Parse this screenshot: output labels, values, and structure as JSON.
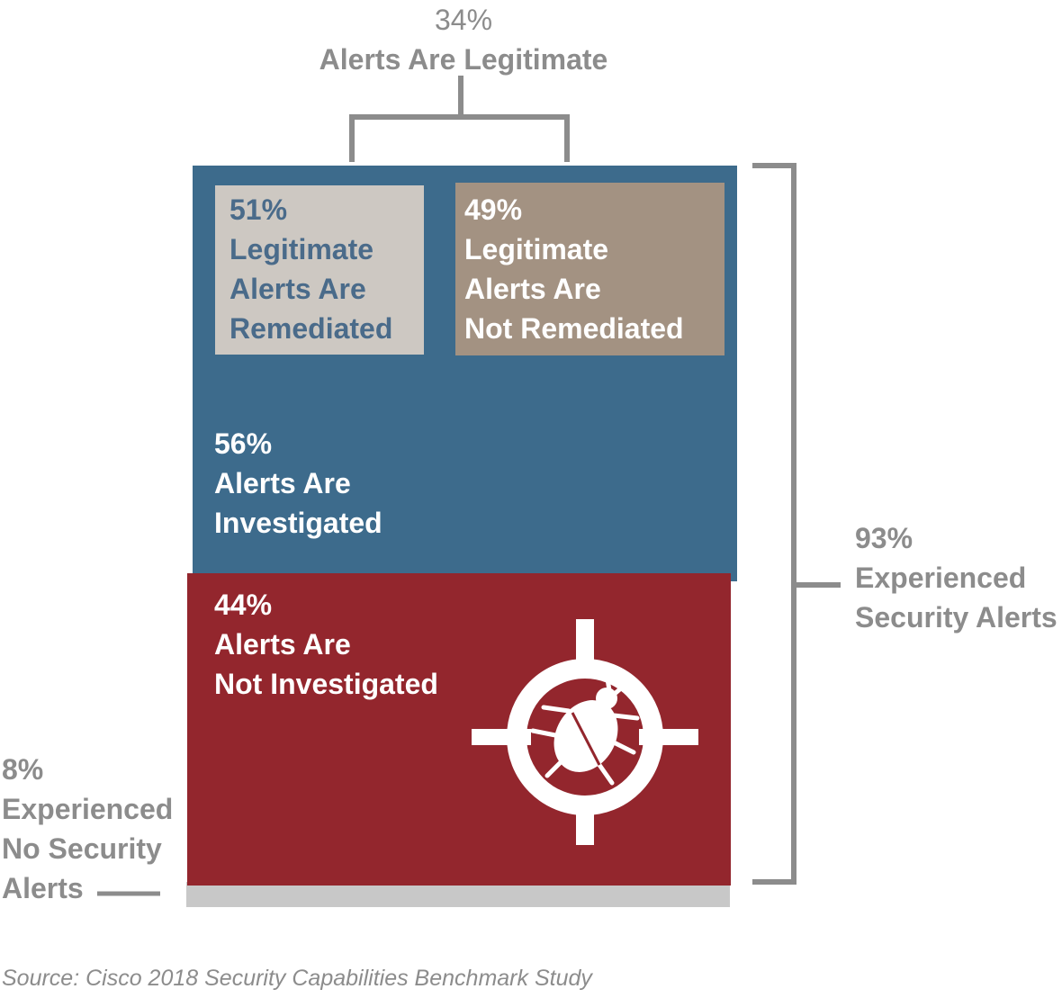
{
  "chart_data": {
    "type": "table",
    "source": "Source: Cisco 2018 Security Capabilities Benchmark Study",
    "colors": {
      "investigated": "#3d6b8c",
      "not_investigated": "#93262d",
      "remediated": "#cdc8c2",
      "not_remediated": "#a39282",
      "no_alerts": "#c8c8c8",
      "bracket": "#8c8c8c"
    },
    "segments": [
      {
        "key": "experienced",
        "value": 93,
        "pct": "93%",
        "label_lines": [
          "Experienced",
          "Security Alerts"
        ]
      },
      {
        "key": "no_alerts",
        "value": 8,
        "pct": "8%",
        "label_lines": [
          "Experienced",
          "No Security",
          "Alerts"
        ]
      },
      {
        "key": "investigated",
        "value": 56,
        "pct": "56%",
        "label_lines": [
          "Alerts Are",
          "Investigated"
        ]
      },
      {
        "key": "not_investigated",
        "value": 44,
        "pct": "44%",
        "label_lines": [
          "Alerts Are",
          "Not Investigated"
        ]
      },
      {
        "key": "legitimate",
        "value": 34,
        "pct": "34%",
        "label_lines": [
          "Alerts Are Legitimate"
        ]
      },
      {
        "key": "remediated",
        "value": 51,
        "pct": "51%",
        "label_lines": [
          "Legitimate",
          "Alerts Are",
          "Remediated"
        ]
      },
      {
        "key": "not_remediated",
        "value": 49,
        "pct": "49%",
        "label_lines": [
          "Legitimate",
          "Alerts Are",
          "Not Remediated"
        ]
      }
    ],
    "icon": "bug-target-icon"
  }
}
